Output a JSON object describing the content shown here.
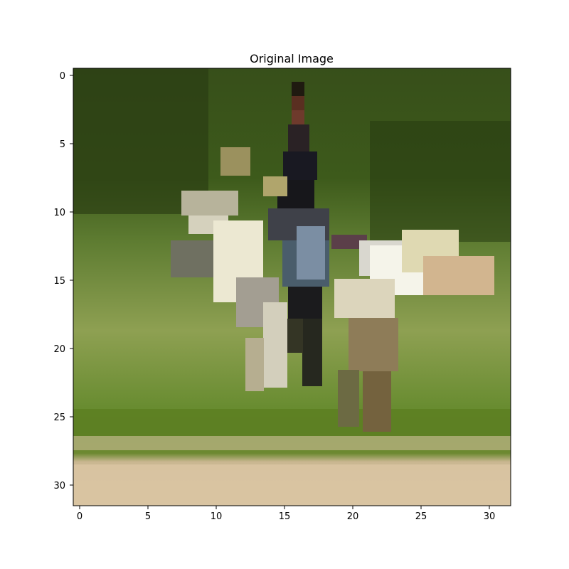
{
  "figure": {
    "title": "Original Image"
  },
  "image": {
    "rows": 32,
    "cols": 32,
    "x_ticks": [
      "0",
      "5",
      "10",
      "15",
      "20",
      "25",
      "30"
    ],
    "y_ticks": [
      "0",
      "5",
      "10",
      "15",
      "20",
      "25",
      "30"
    ]
  }
}
